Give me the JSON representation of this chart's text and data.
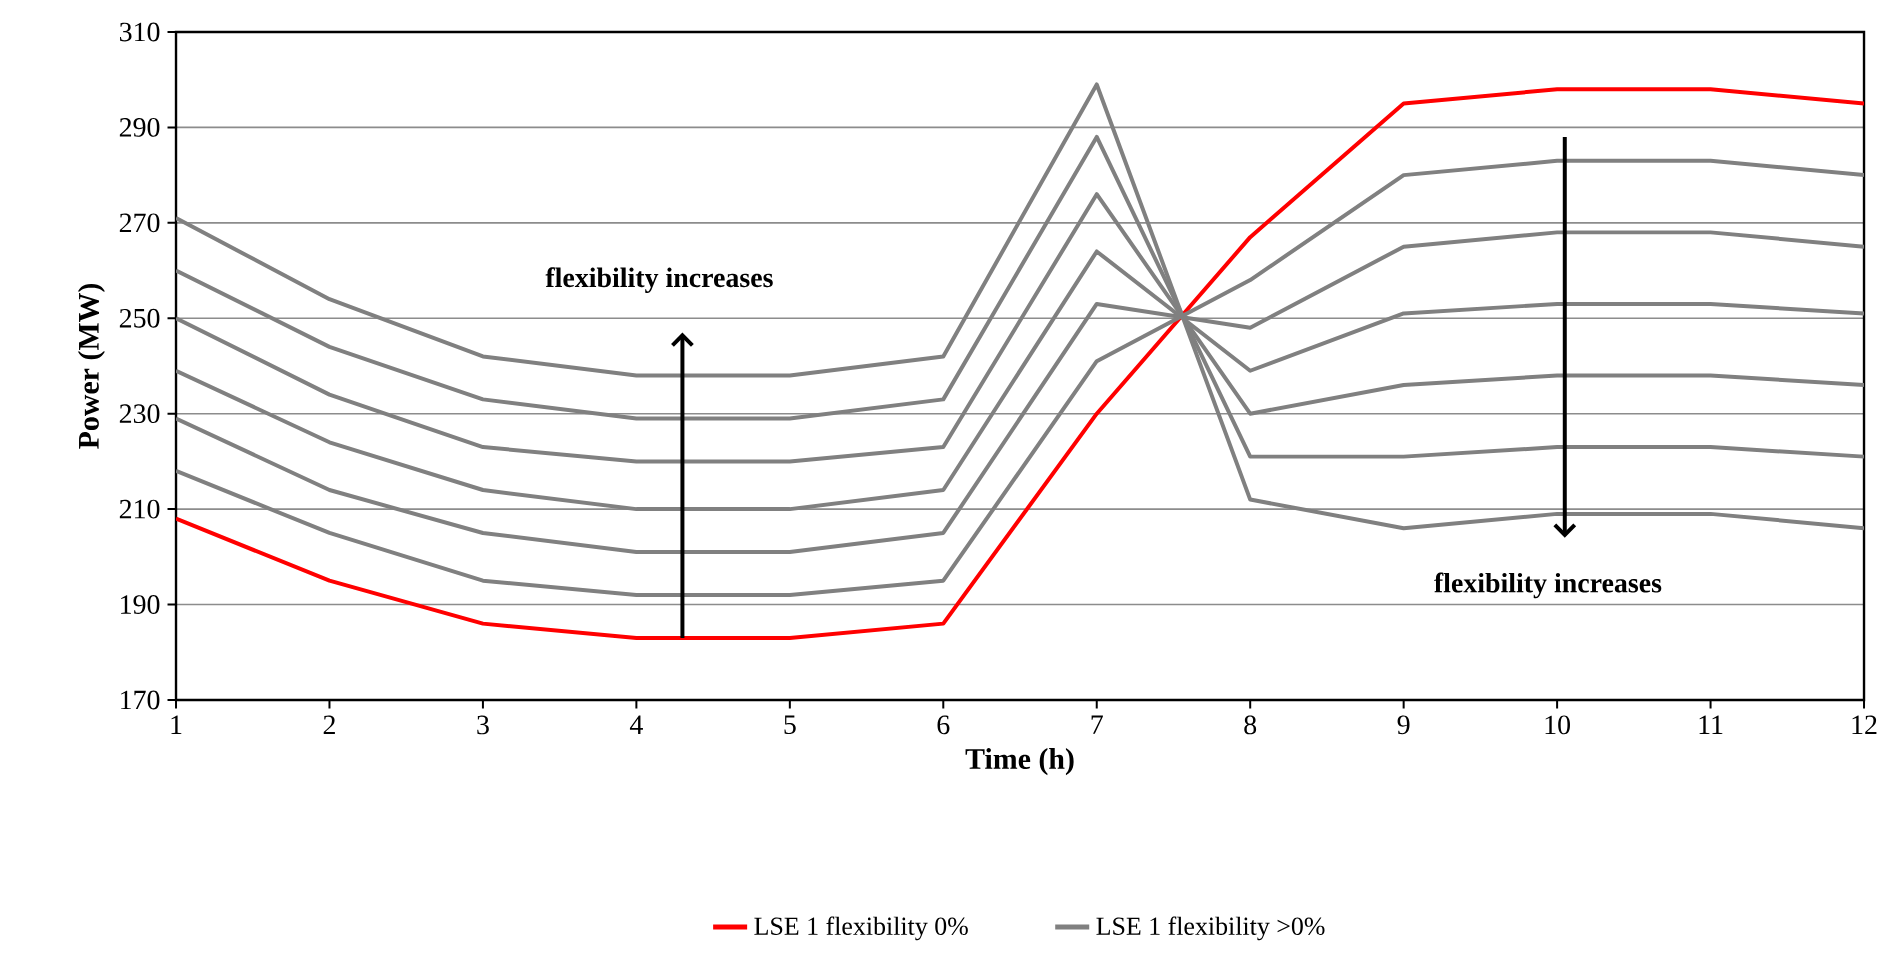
{
  "chart_data": {
    "type": "line",
    "xlabel": "Time (h)",
    "ylabel": "Power (MW)",
    "x": [
      1,
      2,
      3,
      4,
      5,
      6,
      7,
      8,
      9,
      10,
      11,
      12
    ],
    "xlim": [
      1,
      12
    ],
    "xticks": [
      1,
      2,
      3,
      4,
      5,
      6,
      7,
      8,
      9,
      10,
      11,
      12
    ],
    "ylim": [
      170,
      310
    ],
    "yticks": [
      170,
      190,
      210,
      230,
      250,
      270,
      290,
      310
    ],
    "grid": "y",
    "legend": "bottom",
    "annotations": [
      "flexibility increases",
      "flexibility increases"
    ],
    "series": [
      {
        "name": "LSE 1 flexibility 0%",
        "color": "#ff0000",
        "values": [
          208,
          195,
          186,
          183,
          183,
          186,
          230,
          267,
          295,
          298,
          298,
          295
        ]
      },
      {
        "name": "LSE 1 flexibility >0%",
        "color": "#808080",
        "values": [
          218,
          205,
          195,
          192,
          192,
          195,
          241,
          258,
          280,
          283,
          283,
          280
        ]
      },
      {
        "color": "#808080",
        "values": [
          229,
          214,
          205,
          201,
          201,
          205,
          253,
          248,
          265,
          268,
          268,
          265
        ]
      },
      {
        "color": "#808080",
        "values": [
          239,
          224,
          214,
          210,
          210,
          214,
          264,
          239,
          251,
          253,
          253,
          251
        ]
      },
      {
        "color": "#808080",
        "values": [
          250,
          234,
          223,
          220,
          220,
          223,
          276,
          230,
          236,
          238,
          238,
          236
        ]
      },
      {
        "color": "#808080",
        "values": [
          260,
          244,
          233,
          229,
          229,
          233,
          288,
          221,
          221,
          223,
          223,
          221
        ]
      },
      {
        "color": "#808080",
        "values": [
          271,
          254,
          242,
          238,
          238,
          242,
          299,
          212,
          206,
          209,
          209,
          206
        ]
      }
    ]
  }
}
